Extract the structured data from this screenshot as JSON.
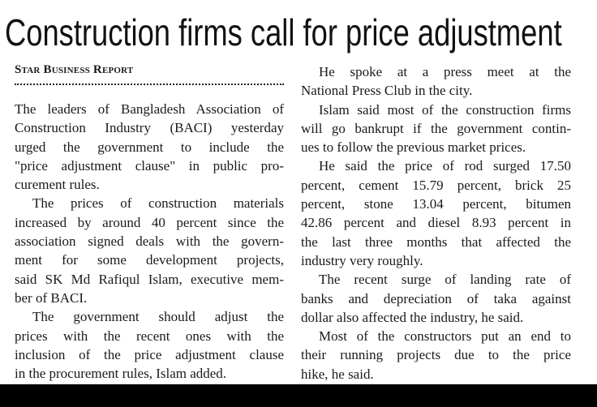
{
  "headline": "Construction firms call for price adjustment",
  "byline": "Star Business Report",
  "columns": [
    {
      "paragraphs": [
        {
          "indent": false,
          "lines": [
            "The leaders of Bangladesh Association of",
            "Construction Industry (BACI) yesterday",
            "urged the government to include the",
            "\"price adjustment clause\" in public pro-",
            "curement rules."
          ]
        },
        {
          "indent": true,
          "lines": [
            "The prices of construction materials",
            "increased by around 40 percent since the",
            "association signed deals with the govern-",
            "ment for some development projects,",
            "said SK Md Rafiqul Islam, executive mem-",
            "ber of BACI."
          ]
        },
        {
          "indent": true,
          "lines": [
            "The government should adjust the",
            "prices with the recent ones with the",
            "inclusion of the price adjustment clause",
            "in the procurement rules, Islam added."
          ]
        }
      ]
    },
    {
      "paragraphs": [
        {
          "indent": true,
          "lines": [
            "He spoke at a press meet at the",
            "National Press Club in the city."
          ]
        },
        {
          "indent": true,
          "lines": [
            "Islam said most of the construction firms",
            "will go bankrupt if the government contin-",
            "ues to follow the previous market prices."
          ]
        },
        {
          "indent": true,
          "lines": [
            "He said the price of rod surged 17.50",
            "percent, cement 15.79 percent, brick 25",
            "percent, stone 13.04 percent, bitumen",
            "42.86 percent and diesel 8.93 percent in",
            "the last three months that affected the",
            "industry very roughly."
          ]
        },
        {
          "indent": true,
          "lines": [
            "The recent surge of landing rate of",
            "banks and depreciation of taka against",
            "dollar also affected the industry, he said."
          ]
        },
        {
          "indent": true,
          "lines": [
            "Most of the constructors put an end to",
            "their running projects due to the price",
            "hike, he said."
          ]
        }
      ]
    }
  ]
}
